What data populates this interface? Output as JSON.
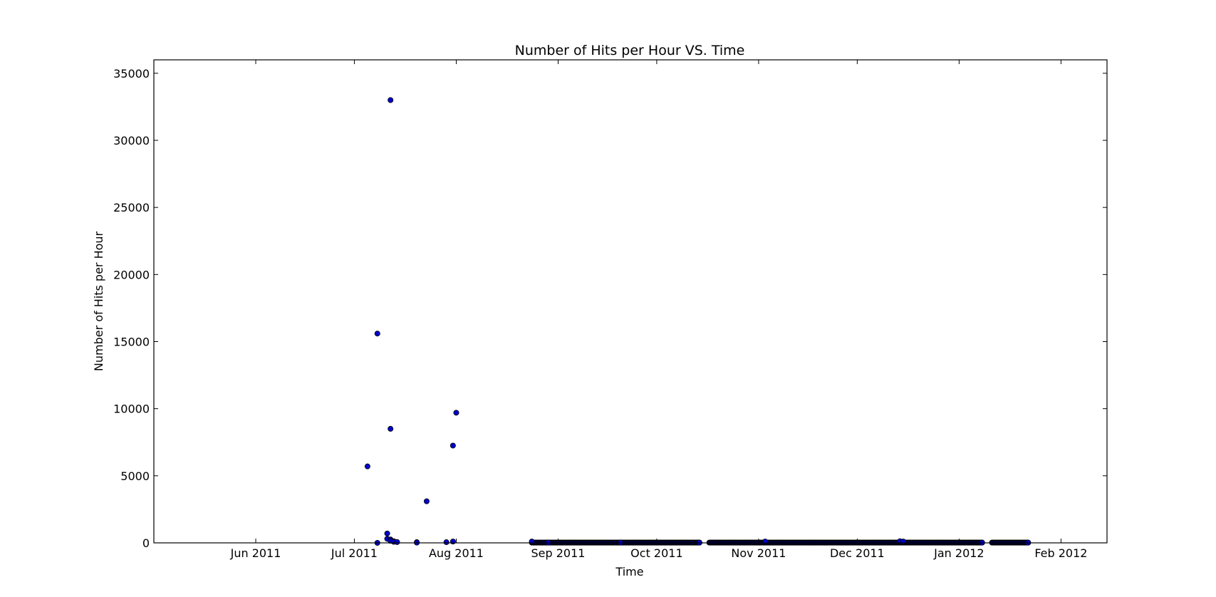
{
  "chart_data": {
    "type": "scatter",
    "title": "Number of Hits per Hour VS. Time",
    "xlabel": "Time",
    "ylabel": "Number of Hits per Hour",
    "xlim": [
      "2011-05-01",
      "2012-02-15"
    ],
    "ylim": [
      0,
      36000
    ],
    "xticks": [
      {
        "date": "2011-06-01",
        "label": "Jun 2011"
      },
      {
        "date": "2011-07-01",
        "label": "Jul 2011"
      },
      {
        "date": "2011-08-01",
        "label": "Aug 2011"
      },
      {
        "date": "2011-09-01",
        "label": "Sep 2011"
      },
      {
        "date": "2011-10-01",
        "label": "Oct 2011"
      },
      {
        "date": "2011-11-01",
        "label": "Nov 2011"
      },
      {
        "date": "2011-12-01",
        "label": "Dec 2011"
      },
      {
        "date": "2012-01-01",
        "label": "Jan 2012"
      },
      {
        "date": "2012-02-01",
        "label": "Feb 2012"
      }
    ],
    "yticks": [
      0,
      5000,
      10000,
      15000,
      20000,
      25000,
      30000,
      35000
    ],
    "grid": false,
    "marker_color": "#0000cc",
    "points": [
      {
        "x": "2011-07-05",
        "y": 5700
      },
      {
        "x": "2011-07-08",
        "y": 15600
      },
      {
        "x": "2011-07-08",
        "y": 0
      },
      {
        "x": "2011-07-11",
        "y": 700
      },
      {
        "x": "2011-07-11",
        "y": 300
      },
      {
        "x": "2011-07-12",
        "y": 33000
      },
      {
        "x": "2011-07-12",
        "y": 8500
      },
      {
        "x": "2011-07-12",
        "y": 250
      },
      {
        "x": "2011-07-12",
        "y": 150
      },
      {
        "x": "2011-07-13",
        "y": 120
      },
      {
        "x": "2011-07-13",
        "y": 80
      },
      {
        "x": "2011-07-14",
        "y": 60
      },
      {
        "x": "2011-07-20",
        "y": 50
      },
      {
        "x": "2011-07-20",
        "y": 20
      },
      {
        "x": "2011-07-23",
        "y": 3100
      },
      {
        "x": "2011-07-29",
        "y": 50
      },
      {
        "x": "2011-07-31",
        "y": 7250
      },
      {
        "x": "2011-08-01",
        "y": 9700
      },
      {
        "x": "2011-07-31",
        "y": 100
      },
      {
        "x": "2011-08-24",
        "y": 100
      },
      {
        "x": "2011-08-29",
        "y": 20
      },
      {
        "x": "2011-09-20",
        "y": 20
      },
      {
        "x": "2011-10-14",
        "y": 20
      },
      {
        "x": "2011-11-03",
        "y": 100
      },
      {
        "x": "2011-12-14",
        "y": 120
      },
      {
        "x": "2011-12-15",
        "y": 100
      },
      {
        "x": "2012-01-08",
        "y": 20
      },
      {
        "x": "2012-01-22",
        "y": 20
      }
    ],
    "dense_ranges": [
      {
        "start": "2011-08-24",
        "end": "2011-09-20",
        "y": 20
      },
      {
        "start": "2011-09-20",
        "end": "2011-10-14",
        "y": 20
      },
      {
        "start": "2011-10-17",
        "end": "2012-01-08",
        "y": 20
      },
      {
        "start": "2012-01-11",
        "end": "2012-01-22",
        "y": 20
      }
    ]
  }
}
